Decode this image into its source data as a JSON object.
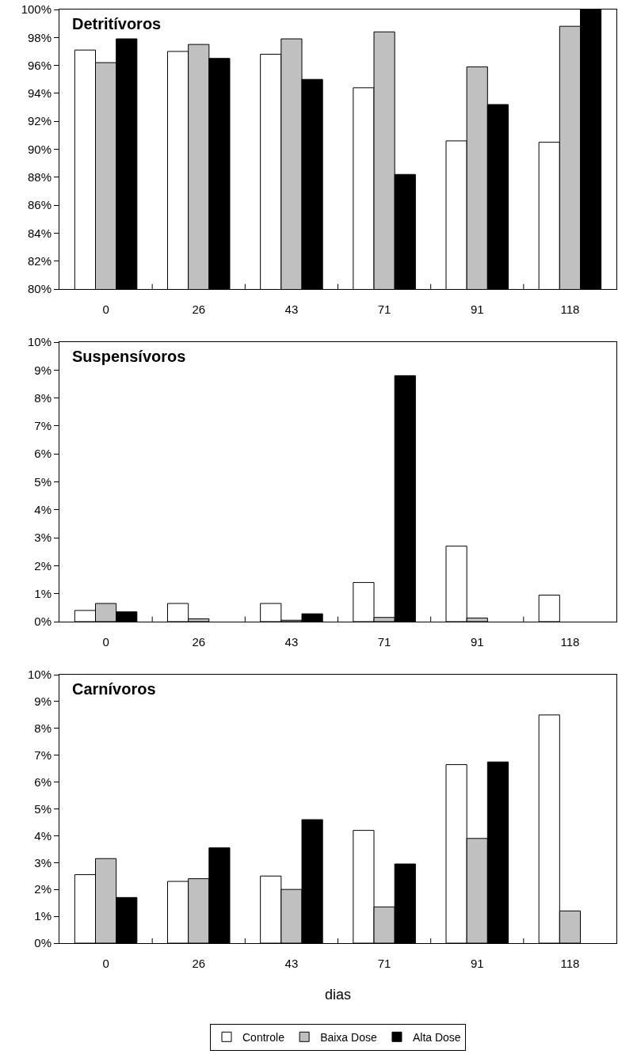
{
  "chart_data": [
    {
      "type": "bar",
      "title": "Detritívoros",
      "categories": [
        "0",
        "26",
        "43",
        "71",
        "91",
        "118"
      ],
      "series": [
        {
          "color": "#ffffff",
          "values": [
            97.1,
            97.0,
            96.8,
            94.4,
            90.6,
            90.5
          ]
        },
        {
          "color": "#c0c0c0",
          "values": [
            96.2,
            97.5,
            97.9,
            98.4,
            95.9,
            98.8
          ]
        },
        {
          "color": "#000000",
          "values": [
            97.9,
            96.5,
            95.0,
            88.2,
            93.2,
            100
          ]
        }
      ],
      "ylim": [
        80,
        100
      ],
      "yticks": [
        {
          "value": 80,
          "label": "80%"
        },
        {
          "value": 82,
          "label": "82%"
        },
        {
          "value": 84,
          "label": "84%"
        },
        {
          "value": 86,
          "label": "86%"
        },
        {
          "value": 88,
          "label": "88%"
        },
        {
          "value": 90,
          "label": "90%"
        },
        {
          "value": 92,
          "label": "92%"
        },
        {
          "value": 94,
          "label": "94%"
        },
        {
          "value": 96,
          "label": "96%"
        },
        {
          "value": 98,
          "label": "98%"
        },
        {
          "value": 100,
          "label": "100%"
        }
      ],
      "grid": false,
      "legend": false
    },
    {
      "type": "bar",
      "title": "Suspensívoros",
      "categories": [
        "0",
        "26",
        "43",
        "71",
        "91",
        "118"
      ],
      "series": [
        {
          "color": "#ffffff",
          "values": [
            0.4,
            0.65,
            0.65,
            1.4,
            2.7,
            0.95
          ]
        },
        {
          "color": "#c0c0c0",
          "values": [
            0.65,
            0.1,
            0.05,
            0.15,
            0.13,
            null
          ]
        },
        {
          "color": "#000000",
          "values": [
            0.35,
            null,
            0.28,
            8.8,
            null,
            null
          ]
        }
      ],
      "ylim": [
        0,
        10
      ],
      "yticks": [
        {
          "value": 0,
          "label": "0%"
        },
        {
          "value": 1,
          "label": "1%"
        },
        {
          "value": 2,
          "label": "2%"
        },
        {
          "value": 3,
          "label": "3%"
        },
        {
          "value": 4,
          "label": "4%"
        },
        {
          "value": 5,
          "label": "5%"
        },
        {
          "value": 6,
          "label": "6%"
        },
        {
          "value": 7,
          "label": "7%"
        },
        {
          "value": 8,
          "label": "8%"
        },
        {
          "value": 9,
          "label": "9%"
        },
        {
          "value": 10,
          "label": "10%"
        }
      ],
      "grid": false,
      "legend": false
    },
    {
      "type": "bar",
      "title": "Carnívoros",
      "xlabel": "dias",
      "categories": [
        "0",
        "26",
        "43",
        "71",
        "91",
        "118"
      ],
      "series": [
        {
          "name": "Controle",
          "color": "#ffffff",
          "values": [
            2.55,
            2.3,
            2.5,
            4.2,
            6.65,
            8.5
          ]
        },
        {
          "name": "Baixa Dose",
          "color": "#c0c0c0",
          "values": [
            3.15,
            2.4,
            2.0,
            1.35,
            3.9,
            1.2
          ]
        },
        {
          "name": "Alta Dose",
          "color": "#000000",
          "values": [
            1.7,
            3.55,
            4.6,
            2.95,
            6.75,
            null
          ]
        }
      ],
      "ylim": [
        0,
        10
      ],
      "yticks": [
        {
          "value": 0,
          "label": "0%"
        },
        {
          "value": 1,
          "label": "1%"
        },
        {
          "value": 2,
          "label": "2%"
        },
        {
          "value": 3,
          "label": "3%"
        },
        {
          "value": 4,
          "label": "4%"
        },
        {
          "value": 5,
          "label": "5%"
        },
        {
          "value": 6,
          "label": "6%"
        },
        {
          "value": 7,
          "label": "7%"
        },
        {
          "value": 8,
          "label": "8%"
        },
        {
          "value": 9,
          "label": "9%"
        },
        {
          "value": 10,
          "label": "10%"
        }
      ],
      "grid": false,
      "legend": "bottom"
    }
  ]
}
